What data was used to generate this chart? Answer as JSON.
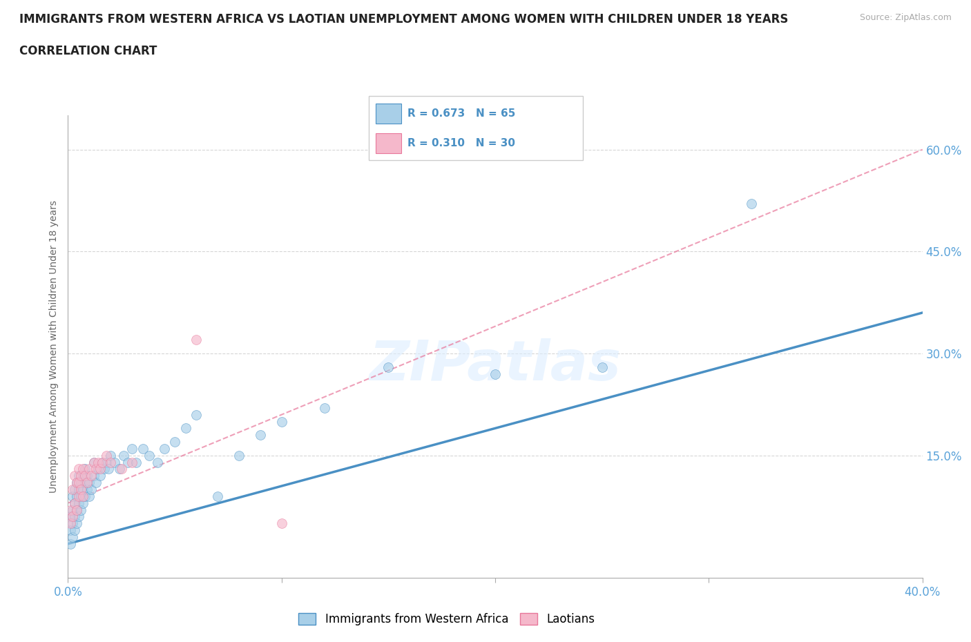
{
  "title_line1": "IMMIGRANTS FROM WESTERN AFRICA VS LAOTIAN UNEMPLOYMENT AMONG WOMEN WITH CHILDREN UNDER 18 YEARS",
  "title_line2": "CORRELATION CHART",
  "source_text": "Source: ZipAtlas.com",
  "ylabel": "Unemployment Among Women with Children Under 18 years",
  "xmin": 0.0,
  "xmax": 0.4,
  "ymin": -0.03,
  "ymax": 0.65,
  "xticks": [
    0.0,
    0.1,
    0.2,
    0.3,
    0.4
  ],
  "xticklabels": [
    "0.0%",
    "",
    "",
    "",
    "40.0%"
  ],
  "yticks": [
    0.0,
    0.15,
    0.3,
    0.45,
    0.6
  ],
  "yticklabels": [
    "",
    "15.0%",
    "30.0%",
    "45.0%",
    "60.0%"
  ],
  "watermark": "ZIPatlas",
  "blue_color": "#a8cfe8",
  "pink_color": "#f5b8cb",
  "blue_line_color": "#4a90c4",
  "pink_line_color": "#e8779a",
  "grid_color": "#cccccc",
  "axis_label_color": "#5ba3d9",
  "blue_scatter_x": [
    0.001,
    0.001,
    0.001,
    0.002,
    0.002,
    0.002,
    0.002,
    0.003,
    0.003,
    0.003,
    0.003,
    0.004,
    0.004,
    0.004,
    0.004,
    0.005,
    0.005,
    0.005,
    0.005,
    0.006,
    0.006,
    0.006,
    0.007,
    0.007,
    0.007,
    0.008,
    0.008,
    0.008,
    0.009,
    0.009,
    0.01,
    0.01,
    0.011,
    0.012,
    0.012,
    0.013,
    0.014,
    0.015,
    0.016,
    0.017,
    0.018,
    0.019,
    0.02,
    0.022,
    0.024,
    0.026,
    0.028,
    0.03,
    0.032,
    0.035,
    0.038,
    0.042,
    0.045,
    0.05,
    0.055,
    0.06,
    0.07,
    0.08,
    0.09,
    0.1,
    0.12,
    0.15,
    0.2,
    0.25,
    0.32
  ],
  "blue_scatter_y": [
    0.02,
    0.04,
    0.06,
    0.03,
    0.05,
    0.07,
    0.09,
    0.04,
    0.06,
    0.08,
    0.1,
    0.05,
    0.07,
    0.09,
    0.11,
    0.06,
    0.08,
    0.1,
    0.12,
    0.07,
    0.09,
    0.11,
    0.08,
    0.1,
    0.12,
    0.09,
    0.11,
    0.13,
    0.1,
    0.12,
    0.09,
    0.11,
    0.1,
    0.12,
    0.14,
    0.11,
    0.13,
    0.12,
    0.14,
    0.13,
    0.14,
    0.13,
    0.15,
    0.14,
    0.13,
    0.15,
    0.14,
    0.16,
    0.14,
    0.16,
    0.15,
    0.14,
    0.16,
    0.17,
    0.19,
    0.21,
    0.09,
    0.15,
    0.18,
    0.2,
    0.22,
    0.28,
    0.27,
    0.28,
    0.52
  ],
  "pink_scatter_x": [
    0.001,
    0.001,
    0.002,
    0.002,
    0.003,
    0.003,
    0.004,
    0.004,
    0.005,
    0.005,
    0.005,
    0.006,
    0.006,
    0.007,
    0.007,
    0.008,
    0.009,
    0.01,
    0.011,
    0.012,
    0.013,
    0.014,
    0.015,
    0.016,
    0.018,
    0.02,
    0.025,
    0.03,
    0.06,
    0.1
  ],
  "pink_scatter_y": [
    0.05,
    0.07,
    0.06,
    0.1,
    0.08,
    0.12,
    0.07,
    0.11,
    0.09,
    0.11,
    0.13,
    0.1,
    0.12,
    0.09,
    0.13,
    0.12,
    0.11,
    0.13,
    0.12,
    0.14,
    0.13,
    0.14,
    0.13,
    0.14,
    0.15,
    0.14,
    0.13,
    0.14,
    0.32,
    0.05
  ],
  "blue_line_x0": 0.0,
  "blue_line_x1": 0.4,
  "blue_line_y0": 0.02,
  "blue_line_y1": 0.36,
  "pink_line_x0": 0.0,
  "pink_line_x1": 0.4,
  "pink_line_y0": 0.08,
  "pink_line_y1": 0.6
}
